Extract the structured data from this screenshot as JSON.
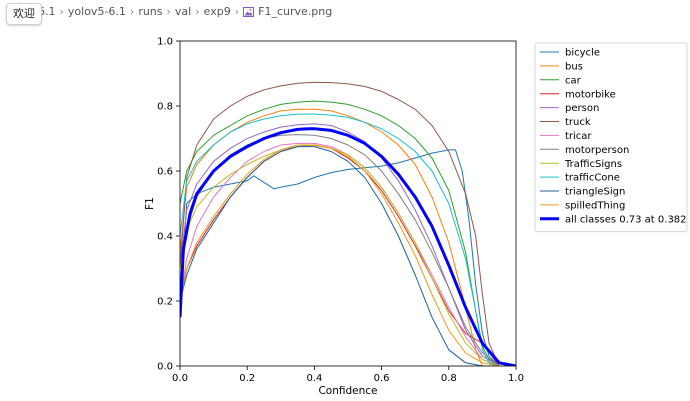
{
  "breadcrumb": {
    "tab_label": "欢迎",
    "items": [
      "6.1",
      "yolov5-6.1",
      "runs",
      "val",
      "exp9",
      "F1_curve.png"
    ]
  },
  "chart_data": {
    "type": "line",
    "xlabel": "Confidence",
    "ylabel": "F1",
    "xlim": [
      0.0,
      1.0
    ],
    "ylim": [
      0.0,
      1.0
    ],
    "xticks": [
      0.0,
      0.2,
      0.4,
      0.6,
      0.8,
      1.0
    ],
    "yticks": [
      0.0,
      0.2,
      0.4,
      0.6,
      0.8,
      1.0
    ],
    "xtick_labels": [
      "0.0",
      "0.2",
      "0.4",
      "0.6",
      "0.8",
      "1.0"
    ],
    "ytick_labels": [
      "0.0",
      "0.2",
      "0.4",
      "0.6",
      "0.8",
      "1.0"
    ],
    "legend_position": "outside-right",
    "series": [
      {
        "name": "bicycle",
        "color": "#1f77b4",
        "width": 1,
        "x": [
          0,
          0.02,
          0.05,
          0.1,
          0.15,
          0.2,
          0.22,
          0.25,
          0.28,
          0.3,
          0.35,
          0.4,
          0.45,
          0.5,
          0.55,
          0.6,
          0.65,
          0.7,
          0.75,
          0.8,
          0.82,
          0.84,
          0.86,
          0.88,
          0.9,
          0.92,
          0.95,
          1.0
        ],
        "y": [
          0.18,
          0.5,
          0.53,
          0.55,
          0.56,
          0.57,
          0.585,
          0.565,
          0.545,
          0.55,
          0.56,
          0.58,
          0.595,
          0.605,
          0.61,
          0.615,
          0.625,
          0.64,
          0.655,
          0.665,
          0.665,
          0.6,
          0.45,
          0.25,
          0.1,
          0.03,
          0,
          0
        ]
      },
      {
        "name": "bus",
        "color": "#ff7f0e",
        "width": 1,
        "x": [
          0,
          0.02,
          0.05,
          0.1,
          0.15,
          0.2,
          0.25,
          0.3,
          0.35,
          0.4,
          0.45,
          0.5,
          0.55,
          0.6,
          0.65,
          0.7,
          0.75,
          0.8,
          0.85,
          0.88,
          0.9,
          0.95,
          1.0
        ],
        "y": [
          0.35,
          0.55,
          0.62,
          0.68,
          0.72,
          0.75,
          0.77,
          0.785,
          0.79,
          0.79,
          0.785,
          0.77,
          0.75,
          0.72,
          0.68,
          0.62,
          0.52,
          0.38,
          0.18,
          0.05,
          0,
          0,
          0
        ]
      },
      {
        "name": "car",
        "color": "#2ca02c",
        "width": 1,
        "x": [
          0,
          0.02,
          0.05,
          0.1,
          0.15,
          0.2,
          0.25,
          0.3,
          0.35,
          0.4,
          0.45,
          0.5,
          0.55,
          0.6,
          0.65,
          0.7,
          0.75,
          0.8,
          0.85,
          0.88,
          0.9,
          0.92,
          0.95,
          1.0
        ],
        "y": [
          0.5,
          0.6,
          0.66,
          0.71,
          0.74,
          0.77,
          0.79,
          0.805,
          0.812,
          0.815,
          0.812,
          0.805,
          0.79,
          0.77,
          0.74,
          0.7,
          0.64,
          0.54,
          0.35,
          0.17,
          0.06,
          0.02,
          0,
          0
        ]
      },
      {
        "name": "motorbike",
        "color": "#d62728",
        "width": 1,
        "x": [
          0,
          0.02,
          0.05,
          0.1,
          0.15,
          0.2,
          0.25,
          0.3,
          0.35,
          0.4,
          0.45,
          0.5,
          0.55,
          0.6,
          0.65,
          0.7,
          0.75,
          0.8,
          0.85,
          0.9,
          0.95,
          1.0
        ],
        "y": [
          0.2,
          0.3,
          0.37,
          0.45,
          0.52,
          0.58,
          0.63,
          0.66,
          0.675,
          0.68,
          0.67,
          0.64,
          0.6,
          0.54,
          0.46,
          0.37,
          0.27,
          0.17,
          0.1,
          0.07,
          0,
          0
        ]
      },
      {
        "name": "person",
        "color": "#9467bd",
        "width": 1,
        "x": [
          0,
          0.02,
          0.05,
          0.1,
          0.15,
          0.2,
          0.25,
          0.3,
          0.35,
          0.4,
          0.45,
          0.5,
          0.55,
          0.6,
          0.65,
          0.7,
          0.75,
          0.8,
          0.85,
          0.9,
          0.95,
          1.0
        ],
        "y": [
          0.3,
          0.48,
          0.56,
          0.63,
          0.67,
          0.7,
          0.72,
          0.735,
          0.742,
          0.745,
          0.74,
          0.72,
          0.69,
          0.64,
          0.57,
          0.48,
          0.37,
          0.24,
          0.11,
          0.03,
          0,
          0
        ]
      },
      {
        "name": "truck",
        "color": "#8c564b",
        "width": 1,
        "x": [
          0,
          0.02,
          0.05,
          0.1,
          0.15,
          0.2,
          0.25,
          0.3,
          0.35,
          0.4,
          0.45,
          0.5,
          0.55,
          0.6,
          0.65,
          0.7,
          0.75,
          0.8,
          0.85,
          0.88,
          0.9,
          0.92,
          0.95,
          1.0
        ],
        "y": [
          0.3,
          0.58,
          0.68,
          0.76,
          0.8,
          0.83,
          0.85,
          0.862,
          0.87,
          0.873,
          0.872,
          0.868,
          0.86,
          0.845,
          0.82,
          0.79,
          0.74,
          0.66,
          0.53,
          0.4,
          0.22,
          0.07,
          0,
          0
        ]
      },
      {
        "name": "tricar",
        "color": "#e377c2",
        "width": 1,
        "x": [
          0,
          0.02,
          0.05,
          0.1,
          0.15,
          0.2,
          0.25,
          0.3,
          0.35,
          0.4,
          0.45,
          0.5,
          0.55,
          0.6,
          0.65,
          0.7,
          0.75,
          0.8,
          0.85,
          0.9,
          0.95,
          1.0
        ],
        "y": [
          0.2,
          0.33,
          0.43,
          0.52,
          0.58,
          0.63,
          0.66,
          0.68,
          0.685,
          0.685,
          0.675,
          0.65,
          0.61,
          0.55,
          0.47,
          0.38,
          0.28,
          0.18,
          0.09,
          0.02,
          0,
          0
        ]
      },
      {
        "name": "motorperson",
        "color": "#7f7f7f",
        "width": 1,
        "x": [
          0,
          0.02,
          0.05,
          0.1,
          0.15,
          0.2,
          0.25,
          0.3,
          0.35,
          0.4,
          0.45,
          0.5,
          0.55,
          0.6,
          0.65,
          0.7,
          0.75,
          0.8,
          0.85,
          0.9,
          0.95,
          1.0
        ],
        "y": [
          0.25,
          0.42,
          0.52,
          0.6,
          0.65,
          0.68,
          0.7,
          0.71,
          0.712,
          0.71,
          0.7,
          0.68,
          0.65,
          0.6,
          0.53,
          0.45,
          0.35,
          0.24,
          0.12,
          0.04,
          0,
          0
        ]
      },
      {
        "name": "TrafficSigns",
        "color": "#bcbd22",
        "width": 1,
        "x": [
          0,
          0.02,
          0.05,
          0.1,
          0.15,
          0.2,
          0.25,
          0.3,
          0.35,
          0.4,
          0.45,
          0.5,
          0.55,
          0.6,
          0.65,
          0.7,
          0.75,
          0.8,
          0.85,
          0.9,
          0.95,
          1.0
        ],
        "y": [
          0.3,
          0.42,
          0.49,
          0.55,
          0.59,
          0.62,
          0.645,
          0.665,
          0.675,
          0.678,
          0.67,
          0.65,
          0.61,
          0.55,
          0.47,
          0.38,
          0.27,
          0.16,
          0.07,
          0.02,
          0,
          0
        ]
      },
      {
        "name": "trafficCone",
        "color": "#17becf",
        "width": 1,
        "x": [
          0,
          0.02,
          0.05,
          0.1,
          0.15,
          0.2,
          0.25,
          0.3,
          0.35,
          0.4,
          0.45,
          0.5,
          0.55,
          0.6,
          0.65,
          0.7,
          0.75,
          0.8,
          0.85,
          0.88,
          0.9,
          0.92,
          0.95,
          1.0
        ],
        "y": [
          0.4,
          0.57,
          0.63,
          0.68,
          0.72,
          0.745,
          0.76,
          0.77,
          0.775,
          0.775,
          0.772,
          0.765,
          0.75,
          0.73,
          0.7,
          0.66,
          0.6,
          0.5,
          0.33,
          0.17,
          0.05,
          0.01,
          0,
          0
        ]
      },
      {
        "name": "triangleSign",
        "color": "#1f5fa0",
        "width": 1,
        "x": [
          0,
          0.02,
          0.05,
          0.1,
          0.15,
          0.2,
          0.25,
          0.3,
          0.35,
          0.4,
          0.45,
          0.5,
          0.55,
          0.6,
          0.65,
          0.7,
          0.75,
          0.8,
          0.85,
          0.9,
          0.95,
          1.0
        ],
        "y": [
          0.2,
          0.28,
          0.36,
          0.44,
          0.52,
          0.58,
          0.63,
          0.66,
          0.675,
          0.675,
          0.66,
          0.63,
          0.58,
          0.5,
          0.4,
          0.28,
          0.15,
          0.05,
          0.01,
          0,
          0,
          0
        ]
      },
      {
        "name": "spilledThing",
        "color": "#e69a1a",
        "width": 1,
        "x": [
          0,
          0.02,
          0.05,
          0.1,
          0.15,
          0.2,
          0.25,
          0.3,
          0.35,
          0.4,
          0.45,
          0.5,
          0.55,
          0.6,
          0.65,
          0.7,
          0.75,
          0.8,
          0.85,
          0.9,
          0.95,
          1.0
        ],
        "y": [
          0.2,
          0.3,
          0.38,
          0.46,
          0.53,
          0.59,
          0.635,
          0.665,
          0.68,
          0.68,
          0.67,
          0.645,
          0.6,
          0.53,
          0.44,
          0.34,
          0.22,
          0.11,
          0.04,
          0.01,
          0,
          0
        ]
      },
      {
        "name": "all classes 0.73 at 0.382",
        "color": "#0000ff",
        "width": 3,
        "x": [
          0,
          0.01,
          0.03,
          0.05,
          0.1,
          0.15,
          0.2,
          0.25,
          0.3,
          0.35,
          0.382,
          0.4,
          0.45,
          0.5,
          0.55,
          0.6,
          0.65,
          0.7,
          0.75,
          0.8,
          0.85,
          0.9,
          0.95,
          1.0
        ],
        "y": [
          0.15,
          0.36,
          0.47,
          0.53,
          0.6,
          0.645,
          0.675,
          0.7,
          0.718,
          0.728,
          0.73,
          0.73,
          0.725,
          0.71,
          0.685,
          0.645,
          0.59,
          0.52,
          0.43,
          0.31,
          0.18,
          0.07,
          0.01,
          0
        ]
      }
    ]
  }
}
